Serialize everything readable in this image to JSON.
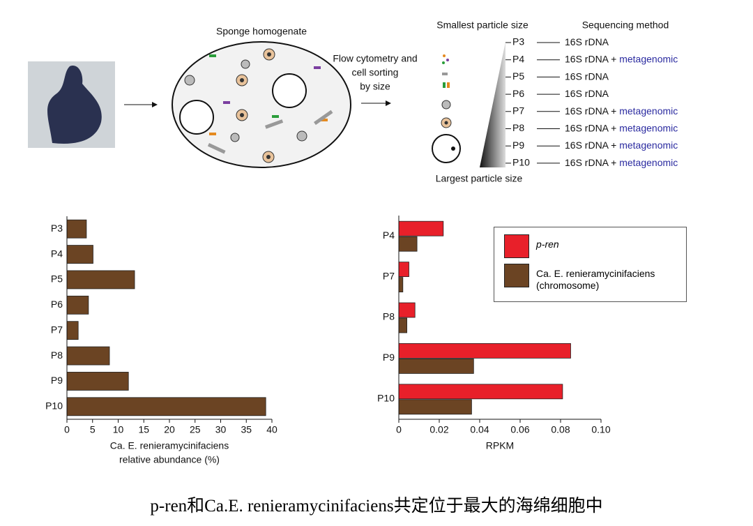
{
  "diagram": {
    "homogenate_title": "Sponge homogenate",
    "sorting_label": [
      "Flow cytometry and",
      "cell sorting",
      "by size"
    ],
    "smallest_label": "Smallest particle size",
    "largest_label": "Largest particle size",
    "method_header": "Sequencing method",
    "rows": [
      {
        "label": "P3",
        "method": "16S rDNA"
      },
      {
        "label": "P4",
        "method": "16S rDNA +",
        "extra": "metagenomic"
      },
      {
        "label": "P5",
        "method": "16S rDNA"
      },
      {
        "label": "P6",
        "method": "16S rDNA"
      },
      {
        "label": "P7",
        "method": "16S rDNA +",
        "extra": "metagenomic"
      },
      {
        "label": "P8",
        "method": "16S rDNA +",
        "extra": "metagenomic"
      },
      {
        "label": "P9",
        "method": "16S rDNA +",
        "extra": "metagenomic"
      },
      {
        "label": "P10",
        "method": "16S rDNA +",
        "extra": "metagenomic"
      }
    ]
  },
  "chart_data": [
    {
      "type": "hbar",
      "categories": [
        "P3",
        "P4",
        "P5",
        "P6",
        "P7",
        "P8",
        "P9",
        "P10"
      ],
      "values": [
        3.8,
        5.1,
        13.2,
        4.2,
        2.2,
        8.3,
        12.0,
        38.8
      ],
      "color": "#6b4423",
      "xlim": [
        0,
        40
      ],
      "xticks": [
        0,
        5,
        10,
        15,
        20,
        25,
        30,
        35,
        40
      ],
      "x_label": [
        "Ca. E. renieramycinifaciens",
        "relative abundance (%)"
      ]
    },
    {
      "type": "hbar",
      "categories": [
        "P4",
        "P7",
        "P8",
        "P9",
        "P10"
      ],
      "series": [
        {
          "name": "p-ren",
          "color": "#e8202a",
          "values": [
            0.022,
            0.005,
            0.008,
            0.085,
            0.081
          ]
        },
        {
          "name": "Ca. E. renieramycinifaciens (chromosome)",
          "color": "#6b4423",
          "values": [
            0.009,
            0.002,
            0.004,
            0.037,
            0.036
          ]
        }
      ],
      "xlim": [
        0,
        0.1
      ],
      "xticks": [
        0,
        0.02,
        0.04,
        0.06,
        0.08,
        {
          "value": 0.1,
          "label": "0.10"
        }
      ],
      "x_label": [
        "RPKM"
      ],
      "legend": "upper right"
    }
  ],
  "caption": "p-ren和Ca.E. renieramycinifaciens共定位于最大的海绵细胞中"
}
